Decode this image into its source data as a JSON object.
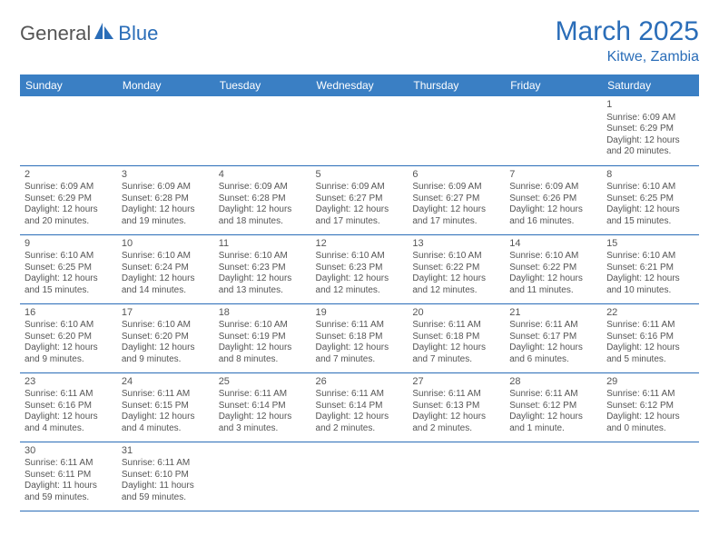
{
  "logo": {
    "text1": "General",
    "text2": "Blue"
  },
  "title": "March 2025",
  "location": "Kitwe, Zambia",
  "colors": {
    "header_bg": "#3a7fc4",
    "accent": "#2a6db8",
    "text": "#555555",
    "bg": "#ffffff"
  },
  "fonts": {
    "title_size": 30,
    "location_size": 16,
    "day_header_size": 12,
    "cell_size": 10
  },
  "day_headers": [
    "Sunday",
    "Monday",
    "Tuesday",
    "Wednesday",
    "Thursday",
    "Friday",
    "Saturday"
  ],
  "weeks": [
    [
      null,
      null,
      null,
      null,
      null,
      null,
      {
        "n": "1",
        "sunrise": "Sunrise: 6:09 AM",
        "sunset": "Sunset: 6:29 PM",
        "d1": "Daylight: 12 hours",
        "d2": "and 20 minutes."
      }
    ],
    [
      {
        "n": "2",
        "sunrise": "Sunrise: 6:09 AM",
        "sunset": "Sunset: 6:29 PM",
        "d1": "Daylight: 12 hours",
        "d2": "and 20 minutes."
      },
      {
        "n": "3",
        "sunrise": "Sunrise: 6:09 AM",
        "sunset": "Sunset: 6:28 PM",
        "d1": "Daylight: 12 hours",
        "d2": "and 19 minutes."
      },
      {
        "n": "4",
        "sunrise": "Sunrise: 6:09 AM",
        "sunset": "Sunset: 6:28 PM",
        "d1": "Daylight: 12 hours",
        "d2": "and 18 minutes."
      },
      {
        "n": "5",
        "sunrise": "Sunrise: 6:09 AM",
        "sunset": "Sunset: 6:27 PM",
        "d1": "Daylight: 12 hours",
        "d2": "and 17 minutes."
      },
      {
        "n": "6",
        "sunrise": "Sunrise: 6:09 AM",
        "sunset": "Sunset: 6:27 PM",
        "d1": "Daylight: 12 hours",
        "d2": "and 17 minutes."
      },
      {
        "n": "7",
        "sunrise": "Sunrise: 6:09 AM",
        "sunset": "Sunset: 6:26 PM",
        "d1": "Daylight: 12 hours",
        "d2": "and 16 minutes."
      },
      {
        "n": "8",
        "sunrise": "Sunrise: 6:10 AM",
        "sunset": "Sunset: 6:25 PM",
        "d1": "Daylight: 12 hours",
        "d2": "and 15 minutes."
      }
    ],
    [
      {
        "n": "9",
        "sunrise": "Sunrise: 6:10 AM",
        "sunset": "Sunset: 6:25 PM",
        "d1": "Daylight: 12 hours",
        "d2": "and 15 minutes."
      },
      {
        "n": "10",
        "sunrise": "Sunrise: 6:10 AM",
        "sunset": "Sunset: 6:24 PM",
        "d1": "Daylight: 12 hours",
        "d2": "and 14 minutes."
      },
      {
        "n": "11",
        "sunrise": "Sunrise: 6:10 AM",
        "sunset": "Sunset: 6:23 PM",
        "d1": "Daylight: 12 hours",
        "d2": "and 13 minutes."
      },
      {
        "n": "12",
        "sunrise": "Sunrise: 6:10 AM",
        "sunset": "Sunset: 6:23 PM",
        "d1": "Daylight: 12 hours",
        "d2": "and 12 minutes."
      },
      {
        "n": "13",
        "sunrise": "Sunrise: 6:10 AM",
        "sunset": "Sunset: 6:22 PM",
        "d1": "Daylight: 12 hours",
        "d2": "and 12 minutes."
      },
      {
        "n": "14",
        "sunrise": "Sunrise: 6:10 AM",
        "sunset": "Sunset: 6:22 PM",
        "d1": "Daylight: 12 hours",
        "d2": "and 11 minutes."
      },
      {
        "n": "15",
        "sunrise": "Sunrise: 6:10 AM",
        "sunset": "Sunset: 6:21 PM",
        "d1": "Daylight: 12 hours",
        "d2": "and 10 minutes."
      }
    ],
    [
      {
        "n": "16",
        "sunrise": "Sunrise: 6:10 AM",
        "sunset": "Sunset: 6:20 PM",
        "d1": "Daylight: 12 hours",
        "d2": "and 9 minutes."
      },
      {
        "n": "17",
        "sunrise": "Sunrise: 6:10 AM",
        "sunset": "Sunset: 6:20 PM",
        "d1": "Daylight: 12 hours",
        "d2": "and 9 minutes."
      },
      {
        "n": "18",
        "sunrise": "Sunrise: 6:10 AM",
        "sunset": "Sunset: 6:19 PM",
        "d1": "Daylight: 12 hours",
        "d2": "and 8 minutes."
      },
      {
        "n": "19",
        "sunrise": "Sunrise: 6:11 AM",
        "sunset": "Sunset: 6:18 PM",
        "d1": "Daylight: 12 hours",
        "d2": "and 7 minutes."
      },
      {
        "n": "20",
        "sunrise": "Sunrise: 6:11 AM",
        "sunset": "Sunset: 6:18 PM",
        "d1": "Daylight: 12 hours",
        "d2": "and 7 minutes."
      },
      {
        "n": "21",
        "sunrise": "Sunrise: 6:11 AM",
        "sunset": "Sunset: 6:17 PM",
        "d1": "Daylight: 12 hours",
        "d2": "and 6 minutes."
      },
      {
        "n": "22",
        "sunrise": "Sunrise: 6:11 AM",
        "sunset": "Sunset: 6:16 PM",
        "d1": "Daylight: 12 hours",
        "d2": "and 5 minutes."
      }
    ],
    [
      {
        "n": "23",
        "sunrise": "Sunrise: 6:11 AM",
        "sunset": "Sunset: 6:16 PM",
        "d1": "Daylight: 12 hours",
        "d2": "and 4 minutes."
      },
      {
        "n": "24",
        "sunrise": "Sunrise: 6:11 AM",
        "sunset": "Sunset: 6:15 PM",
        "d1": "Daylight: 12 hours",
        "d2": "and 4 minutes."
      },
      {
        "n": "25",
        "sunrise": "Sunrise: 6:11 AM",
        "sunset": "Sunset: 6:14 PM",
        "d1": "Daylight: 12 hours",
        "d2": "and 3 minutes."
      },
      {
        "n": "26",
        "sunrise": "Sunrise: 6:11 AM",
        "sunset": "Sunset: 6:14 PM",
        "d1": "Daylight: 12 hours",
        "d2": "and 2 minutes."
      },
      {
        "n": "27",
        "sunrise": "Sunrise: 6:11 AM",
        "sunset": "Sunset: 6:13 PM",
        "d1": "Daylight: 12 hours",
        "d2": "and 2 minutes."
      },
      {
        "n": "28",
        "sunrise": "Sunrise: 6:11 AM",
        "sunset": "Sunset: 6:12 PM",
        "d1": "Daylight: 12 hours",
        "d2": "and 1 minute."
      },
      {
        "n": "29",
        "sunrise": "Sunrise: 6:11 AM",
        "sunset": "Sunset: 6:12 PM",
        "d1": "Daylight: 12 hours",
        "d2": "and 0 minutes."
      }
    ],
    [
      {
        "n": "30",
        "sunrise": "Sunrise: 6:11 AM",
        "sunset": "Sunset: 6:11 PM",
        "d1": "Daylight: 11 hours",
        "d2": "and 59 minutes."
      },
      {
        "n": "31",
        "sunrise": "Sunrise: 6:11 AM",
        "sunset": "Sunset: 6:10 PM",
        "d1": "Daylight: 11 hours",
        "d2": "and 59 minutes."
      },
      null,
      null,
      null,
      null,
      null
    ]
  ]
}
